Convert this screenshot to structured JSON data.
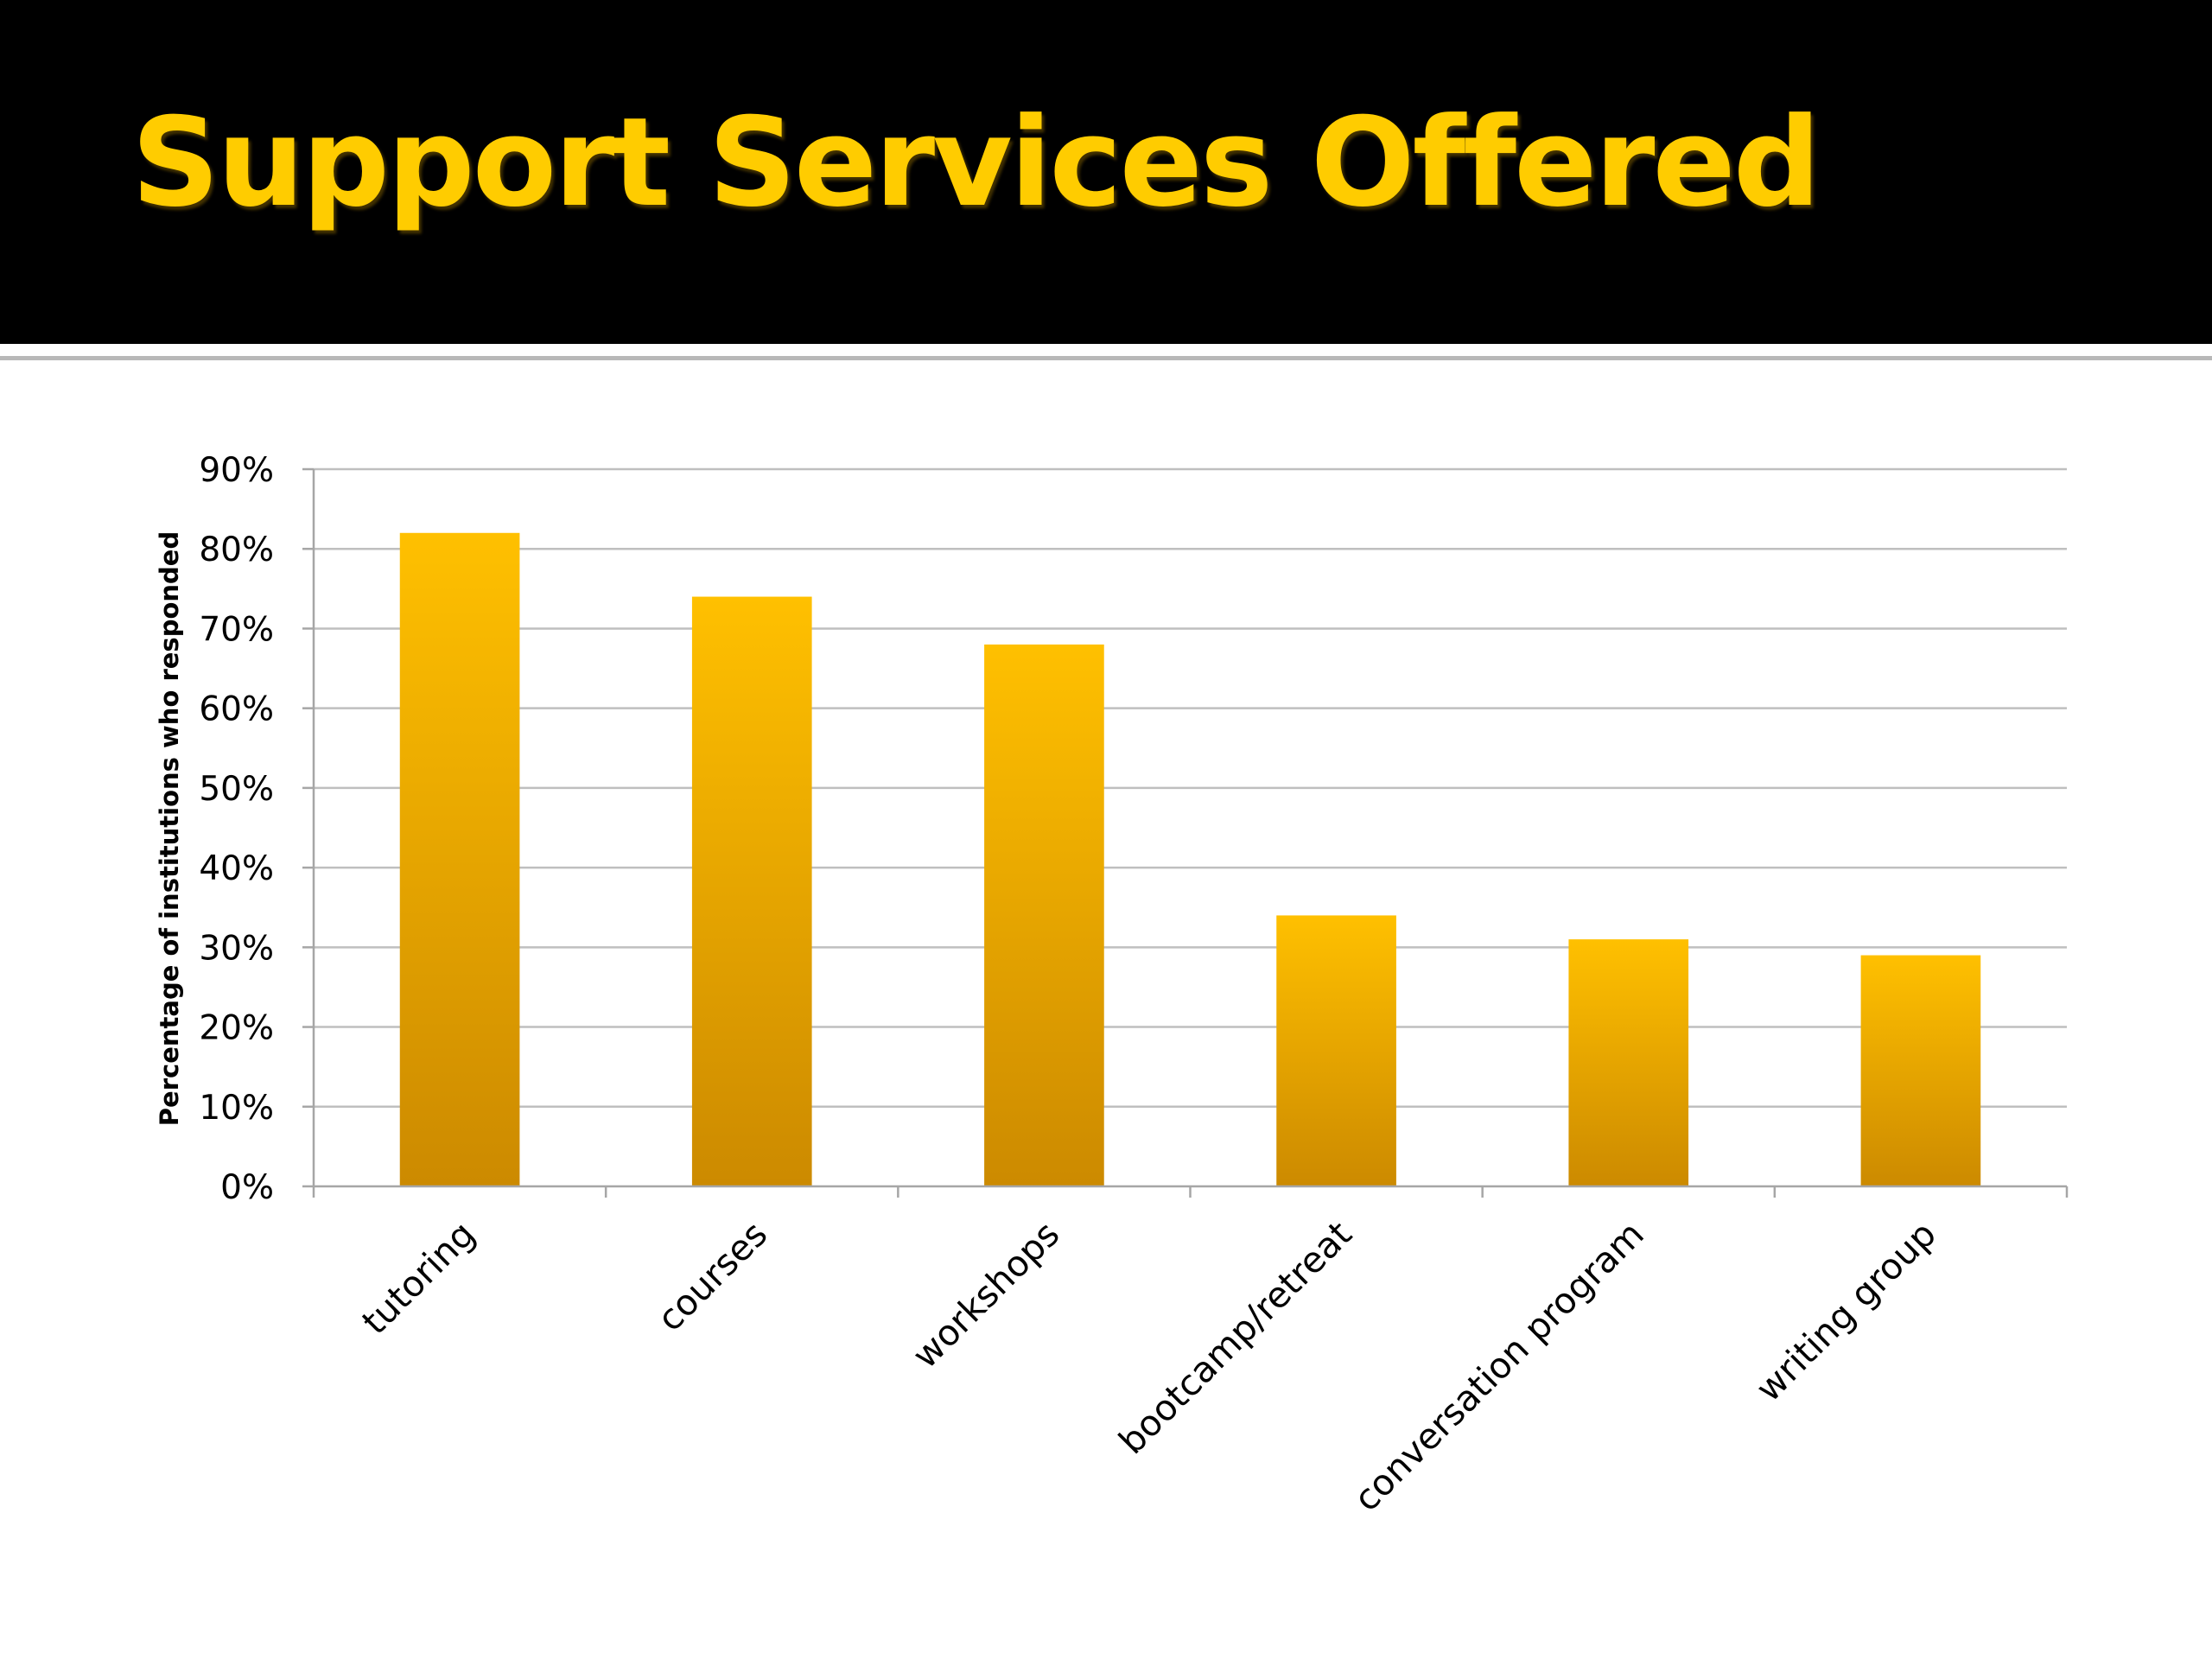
{
  "slide": {
    "title": "Support Services Offered"
  },
  "colors": {
    "title_band": "#000000",
    "title_text": "#FFCC00",
    "bar_top": "#FFC000",
    "bar_bottom": "#CC8A00",
    "gridline": "#BFBFBF"
  },
  "chart_data": {
    "type": "bar",
    "title": "",
    "xlabel": "",
    "ylabel": "Percentage of institutions who responded",
    "categories": [
      "tutoring",
      "courses",
      "workshops",
      "bootcamp/retreat",
      "conversation program",
      "writing group"
    ],
    "values": [
      0.82,
      0.74,
      0.68,
      0.34,
      0.31,
      0.29
    ],
    "ylim": [
      0,
      0.9
    ],
    "yticks": [
      0,
      0.1,
      0.2,
      0.3,
      0.4,
      0.5,
      0.6,
      0.7,
      0.8,
      0.9
    ],
    "ytick_labels": [
      "0%",
      "10%",
      "20%",
      "30%",
      "40%",
      "50%",
      "60%",
      "70%",
      "80%",
      "90%"
    ],
    "grid": true,
    "legend": "none"
  }
}
